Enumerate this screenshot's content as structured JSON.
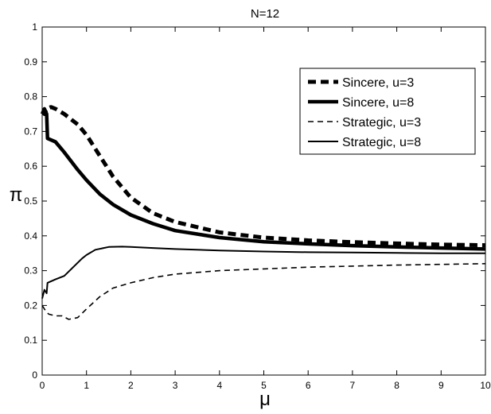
{
  "chart_data": {
    "type": "line",
    "title": "N=12",
    "xlabel": "μ",
    "ylabel": "π",
    "xlim": [
      0,
      10
    ],
    "ylim": [
      0,
      1
    ],
    "xticks": [
      0,
      1,
      2,
      3,
      4,
      5,
      6,
      7,
      8,
      9,
      10
    ],
    "yticks": [
      0,
      0.1,
      0.2,
      0.3,
      0.4,
      0.5,
      0.6,
      0.7,
      0.8,
      0.9,
      1
    ],
    "grid": false,
    "legend_position": "top-right",
    "series": [
      {
        "name": "Sincere, u=3",
        "style": "dashed-thick",
        "color": "#000000",
        "x": [
          0.02,
          0.05,
          0.1,
          0.2,
          0.3,
          0.5,
          0.8,
          1.0,
          1.3,
          1.6,
          2.0,
          2.5,
          3.0,
          4.0,
          5.0,
          6.0,
          7.0,
          8.0,
          9.0,
          10.0
        ],
        "y": [
          0.76,
          0.75,
          0.765,
          0.77,
          0.765,
          0.75,
          0.72,
          0.69,
          0.63,
          0.57,
          0.51,
          0.465,
          0.44,
          0.41,
          0.395,
          0.387,
          0.382,
          0.378,
          0.375,
          0.373
        ]
      },
      {
        "name": "Sincere, u=8",
        "style": "solid-thick",
        "color": "#000000",
        "x": [
          0.0,
          0.05,
          0.1,
          0.12,
          0.3,
          0.5,
          0.8,
          1.0,
          1.3,
          1.6,
          2.0,
          2.5,
          3.0,
          4.0,
          5.0,
          6.0,
          7.0,
          8.0,
          9.0,
          10.0
        ],
        "y": [
          0.75,
          0.765,
          0.75,
          0.68,
          0.67,
          0.64,
          0.59,
          0.56,
          0.52,
          0.49,
          0.46,
          0.435,
          0.415,
          0.395,
          0.383,
          0.377,
          0.372,
          0.368,
          0.365,
          0.362
        ]
      },
      {
        "name": "Strategic, u=3",
        "style": "dashed-thin",
        "color": "#000000",
        "x": [
          0.0,
          0.05,
          0.1,
          0.15,
          0.3,
          0.45,
          0.6,
          0.8,
          1.0,
          1.3,
          1.6,
          2.0,
          2.5,
          3.0,
          4.0,
          5.0,
          6.0,
          7.0,
          8.0,
          9.0,
          10.0
        ],
        "y": [
          0.2,
          0.19,
          0.18,
          0.175,
          0.17,
          0.17,
          0.16,
          0.165,
          0.19,
          0.225,
          0.25,
          0.265,
          0.28,
          0.29,
          0.3,
          0.305,
          0.31,
          0.313,
          0.316,
          0.318,
          0.32
        ]
      },
      {
        "name": "Strategic, u=8",
        "style": "solid-thin",
        "color": "#000000",
        "x": [
          0.0,
          0.05,
          0.1,
          0.12,
          0.3,
          0.5,
          0.7,
          0.9,
          1.0,
          1.2,
          1.5,
          1.8,
          2.0,
          2.5,
          3.0,
          4.0,
          5.0,
          6.0,
          7.0,
          8.0,
          9.0,
          10.0
        ],
        "y": [
          0.22,
          0.245,
          0.235,
          0.265,
          0.275,
          0.285,
          0.31,
          0.335,
          0.345,
          0.36,
          0.368,
          0.369,
          0.368,
          0.365,
          0.362,
          0.358,
          0.355,
          0.353,
          0.352,
          0.351,
          0.35,
          0.35
        ]
      }
    ]
  }
}
